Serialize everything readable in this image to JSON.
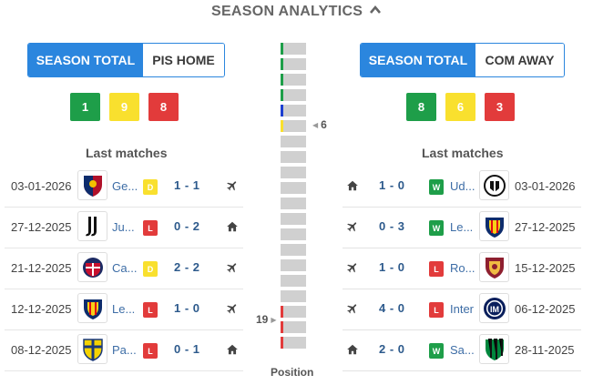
{
  "header": {
    "title": "SEASON ANALYTICS",
    "toggle_icon": "chevron-up-icon"
  },
  "home": {
    "tabs": [
      {
        "label": "SEASON TOTAL",
        "active": true
      },
      {
        "label": "PIS HOME",
        "active": false
      }
    ],
    "counts": {
      "wins": "1",
      "draws": "9",
      "losses": "8"
    },
    "last_matches_title": "Last matches",
    "matches": [
      {
        "date": "03-01-2026",
        "team": "Genoa",
        "team_short": "Ge...",
        "result": "D",
        "score": "1 - 1",
        "venue_icon": "plane-icon"
      },
      {
        "date": "27-12-2025",
        "team": "Juventus",
        "team_short": "Ju...",
        "result": "L",
        "score": "0 - 2",
        "venue_icon": "home-icon"
      },
      {
        "date": "21-12-2025",
        "team": "Cagliari",
        "team_short": "Ca...",
        "result": "D",
        "score": "2 - 2",
        "venue_icon": "plane-icon"
      },
      {
        "date": "12-12-2025",
        "team": "Lecce",
        "team_short": "Le...",
        "result": "L",
        "score": "1 - 0",
        "venue_icon": "plane-icon"
      },
      {
        "date": "08-12-2025",
        "team": "Parma",
        "team_short": "Pa...",
        "result": "L",
        "score": "0 - 1",
        "venue_icon": "home-icon"
      }
    ]
  },
  "away": {
    "tabs": [
      {
        "label": "SEASON TOTAL",
        "active": true
      },
      {
        "label": "COM AWAY",
        "active": false
      }
    ],
    "counts": {
      "wins": "8",
      "draws": "6",
      "losses": "3"
    },
    "last_matches_title": "Last matches",
    "matches": [
      {
        "date": "03-01-2026",
        "team": "Udinese",
        "team_short": "Ud...",
        "result": "W",
        "score": "1 - 0",
        "venue_icon": "home-icon"
      },
      {
        "date": "27-12-2025",
        "team": "Lecce",
        "team_short": "Le...",
        "result": "W",
        "score": "0 - 3",
        "venue_icon": "plane-icon"
      },
      {
        "date": "15-12-2025",
        "team": "Roma",
        "team_short": "Ro...",
        "result": "L",
        "score": "1 - 0",
        "venue_icon": "plane-icon"
      },
      {
        "date": "06-12-2025",
        "team": "Inter",
        "team_short": "Inter",
        "result": "L",
        "score": "4 - 0",
        "venue_icon": "plane-icon"
      },
      {
        "date": "28-11-2025",
        "team": "Sassuolo",
        "team_short": "Sa...",
        "result": "W",
        "score": "2 - 0",
        "venue_icon": "home-icon"
      }
    ]
  },
  "position_chart": {
    "label": "Position",
    "home_position": "19",
    "away_position": "6",
    "zones": [
      "green",
      "green",
      "green",
      "green",
      "blue",
      "yellow",
      "none",
      "none",
      "none",
      "none",
      "none",
      "none",
      "none",
      "none",
      "none",
      "none",
      "none",
      "red",
      "red",
      "red"
    ],
    "colors": {
      "green": "#1e9e49",
      "blue": "#1c3fd1",
      "yellow": "#f9e02e",
      "red": "#e23b3b",
      "none": "transparent"
    }
  }
}
